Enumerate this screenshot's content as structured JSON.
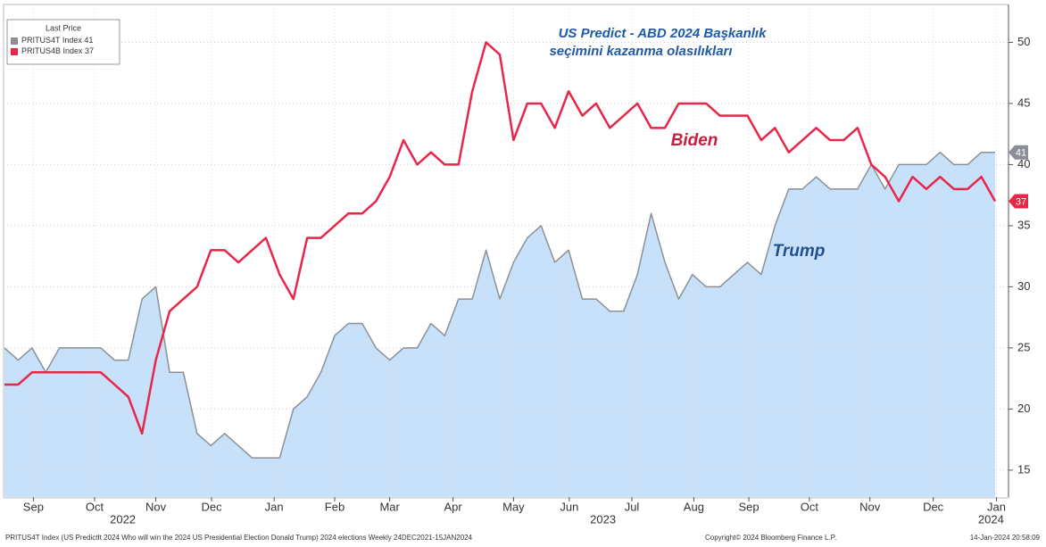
{
  "chart_data": {
    "type": "line",
    "title": "US Predict - ABD 2024 Başkanlık",
    "subtitle": "seçimini kazanma olasılıkları",
    "legend_title": "Last Price",
    "series": [
      {
        "name": "PRITUS4T Index",
        "label": "Trump",
        "color": "#8c9096",
        "area_color": "#c8e1fa",
        "values": [
          25,
          24,
          25,
          23,
          25,
          25,
          25,
          25,
          24,
          24,
          29,
          30,
          23,
          23,
          18,
          17,
          18,
          17,
          16,
          16,
          16,
          20,
          21,
          23,
          26,
          27,
          27,
          25,
          24,
          25,
          25,
          27,
          26,
          29,
          29,
          33,
          29,
          32,
          34,
          35,
          32,
          33,
          29,
          29,
          28,
          28,
          31,
          36,
          32,
          29,
          31,
          30,
          30,
          31,
          32,
          31,
          35,
          38,
          38,
          39,
          38,
          38,
          38,
          40,
          38,
          40,
          40,
          40,
          41,
          40,
          40,
          41,
          41
        ]
      },
      {
        "name": "PRITUS4B Index",
        "label": "Biden",
        "color": "#e8264a",
        "values": [
          22,
          22,
          23,
          23,
          23,
          23,
          23,
          23,
          22,
          21,
          18,
          24,
          28,
          29,
          30,
          33,
          33,
          32,
          33,
          34,
          31,
          29,
          34,
          34,
          35,
          36,
          36,
          37,
          39,
          42,
          40,
          41,
          40,
          40,
          46,
          50,
          49,
          42,
          45,
          45,
          43,
          46,
          44,
          45,
          43,
          44,
          45,
          43,
          43,
          45,
          45,
          45,
          44,
          44,
          44,
          42,
          43,
          41,
          42,
          43,
          42,
          42,
          43,
          40,
          39,
          37,
          39,
          38,
          39,
          38,
          38,
          39,
          37
        ]
      }
    ],
    "xlim": [
      0,
      72
    ],
    "xticks": [
      {
        "value": 2.1,
        "label": "Sep"
      },
      {
        "value": 6.55,
        "label": "Oct"
      },
      {
        "value": 11,
        "label": "Nov"
      },
      {
        "value": 15.05,
        "label": "Dec"
      },
      {
        "value": 19.6,
        "label": "Jan"
      },
      {
        "value": 24,
        "label": "Feb"
      },
      {
        "value": 28,
        "label": "Mar"
      },
      {
        "value": 32.6,
        "label": "Apr"
      },
      {
        "value": 37,
        "label": "May"
      },
      {
        "value": 41.05,
        "label": "Jun"
      },
      {
        "value": 45.6,
        "label": "Jul"
      },
      {
        "value": 50.1,
        "label": "Aug"
      },
      {
        "value": 54.1,
        "label": "Sep"
      },
      {
        "value": 58.5,
        "label": "Oct"
      },
      {
        "value": 62.9,
        "label": "Nov"
      },
      {
        "value": 67.5,
        "label": "Dec"
      },
      {
        "value": 72.1,
        "label": "Jan"
      }
    ],
    "year_ticks": [
      {
        "value": 8.6,
        "label": "2022"
      },
      {
        "value": 43.5,
        "label": "2023"
      },
      {
        "value": 71.7,
        "label": "2024"
      }
    ],
    "ylim": [
      12.8,
      53.1
    ],
    "yticks": [
      15,
      20,
      25,
      30,
      35,
      40,
      45,
      50
    ],
    "footer_left": "PRITUS4T Index (US PredictIt 2024 Who will win the 2024 US Presidential Election Donald Trump) 2024 elections  Weekly 24DEC2021-15JAN2024",
    "footer_center": "Copyright© 2024 Bloomberg Finance L.P.",
    "footer_right": "14-Jan-2024 20:58:09"
  }
}
